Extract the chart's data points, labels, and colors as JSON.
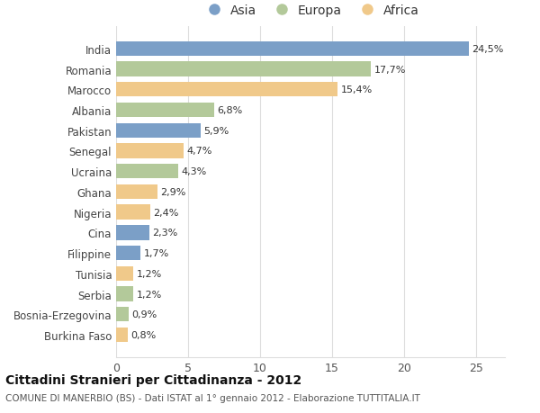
{
  "categories": [
    "India",
    "Romania",
    "Marocco",
    "Albania",
    "Pakistan",
    "Senegal",
    "Ucraina",
    "Ghana",
    "Nigeria",
    "Cina",
    "Filippine",
    "Tunisia",
    "Serbia",
    "Bosnia-Erzegovina",
    "Burkina Faso"
  ],
  "values": [
    24.5,
    17.7,
    15.4,
    6.8,
    5.9,
    4.7,
    4.3,
    2.9,
    2.4,
    2.3,
    1.7,
    1.2,
    1.2,
    0.9,
    0.8
  ],
  "labels": [
    "24,5%",
    "17,7%",
    "15,4%",
    "6,8%",
    "5,9%",
    "4,7%",
    "4,3%",
    "2,9%",
    "2,4%",
    "2,3%",
    "1,7%",
    "1,2%",
    "1,2%",
    "0,9%",
    "0,8%"
  ],
  "continents": [
    "Asia",
    "Europa",
    "Africa",
    "Europa",
    "Asia",
    "Africa",
    "Europa",
    "Africa",
    "Africa",
    "Asia",
    "Asia",
    "Africa",
    "Europa",
    "Europa",
    "Africa"
  ],
  "colors": {
    "Asia": "#7b9fc7",
    "Europa": "#b3c99a",
    "Africa": "#f0c98a"
  },
  "legend_order": [
    "Asia",
    "Europa",
    "Africa"
  ],
  "xlim": [
    0,
    27
  ],
  "xticks": [
    0,
    5,
    10,
    15,
    20,
    25
  ],
  "title_main": "Cittadini Stranieri per Cittadinanza - 2012",
  "title_sub": "COMUNE DI MANERBIO (BS) - Dati ISTAT al 1° gennaio 2012 - Elaborazione TUTTITALIA.IT",
  "bg_color": "#ffffff",
  "grid_color": "#dddddd",
  "bar_height": 0.72,
  "label_fontsize": 8.0,
  "ytick_fontsize": 8.5,
  "xtick_fontsize": 9
}
